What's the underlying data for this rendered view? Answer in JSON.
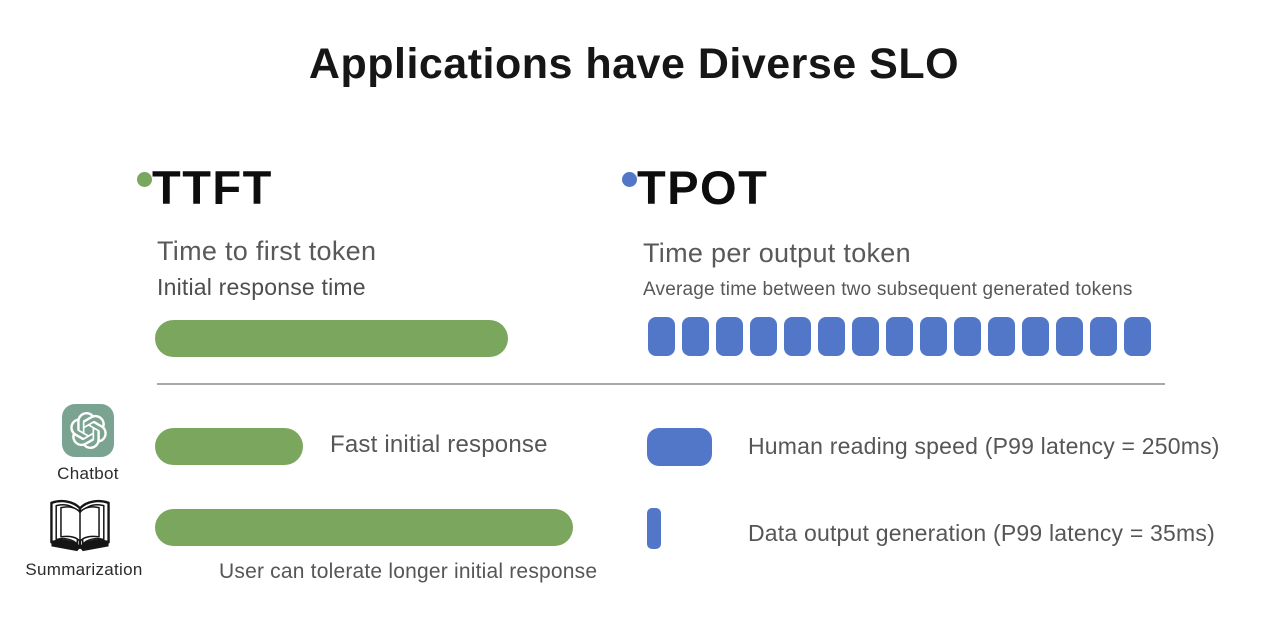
{
  "title": "Applications have Diverse SLO",
  "colors": {
    "green": "#7aa65e",
    "blue": "#5377c8",
    "chatgpt_bg": "#7ba392",
    "divider_gray": "#a9a9a9"
  },
  "metrics": {
    "ttft": {
      "abbr": "TTFT",
      "name": "Time to first token",
      "description": "Initial response time"
    },
    "tpot": {
      "abbr": "TPOT",
      "name": "Time per output token",
      "description": "Average time between two subsequent generated tokens",
      "token_count": 15
    }
  },
  "applications": {
    "chatbot": {
      "label": "Chatbot",
      "icon": "chatgpt-logo-icon",
      "ttft_note": "Fast initial response",
      "tpot_note": "Human reading speed (P99 latency = 250ms)"
    },
    "summarization": {
      "label": "Summarization",
      "icon": "open-book-icon",
      "ttft_note": "User can tolerate longer initial response",
      "tpot_note": "Data output generation (P99 latency = 35ms)"
    }
  }
}
